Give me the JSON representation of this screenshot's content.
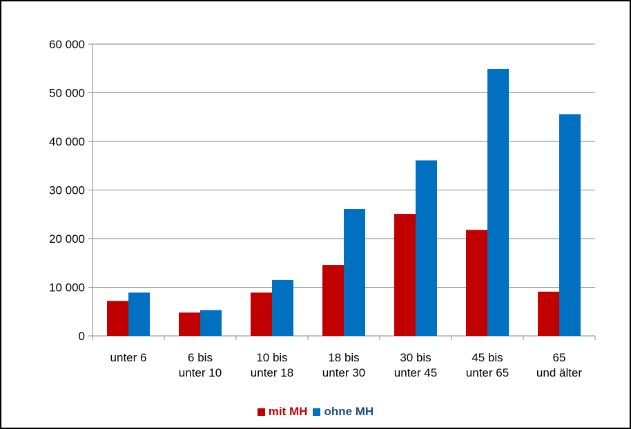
{
  "chart_data": {
    "type": "bar",
    "categories": [
      [
        "unter 6"
      ],
      [
        "6 bis",
        "unter 10"
      ],
      [
        "10 bis",
        "unter 18"
      ],
      [
        "18 bis",
        "unter 30"
      ],
      [
        "30 bis",
        "unter 45"
      ],
      [
        "45 bis",
        "unter 65"
      ],
      [
        "65",
        "und älter"
      ]
    ],
    "series": [
      {
        "name": "mit MH",
        "color": "#C00000",
        "values": [
          7200,
          4800,
          8900,
          14600,
          25100,
          21800,
          9100
        ]
      },
      {
        "name": "ohne MH",
        "color": "#0070C0",
        "values": [
          8900,
          5300,
          11500,
          26100,
          36100,
          54900,
          45600
        ]
      }
    ],
    "ylim": [
      0,
      60000
    ],
    "yticks": [
      0,
      10000,
      20000,
      30000,
      40000,
      50000,
      60000
    ],
    "ytick_labels": [
      "0",
      "10 000",
      "20 000",
      "30 000",
      "40 000",
      "50 000",
      "60 000"
    ],
    "grid": true,
    "legend_position": "bottom",
    "title": "",
    "xlabel": "",
    "ylabel": ""
  }
}
